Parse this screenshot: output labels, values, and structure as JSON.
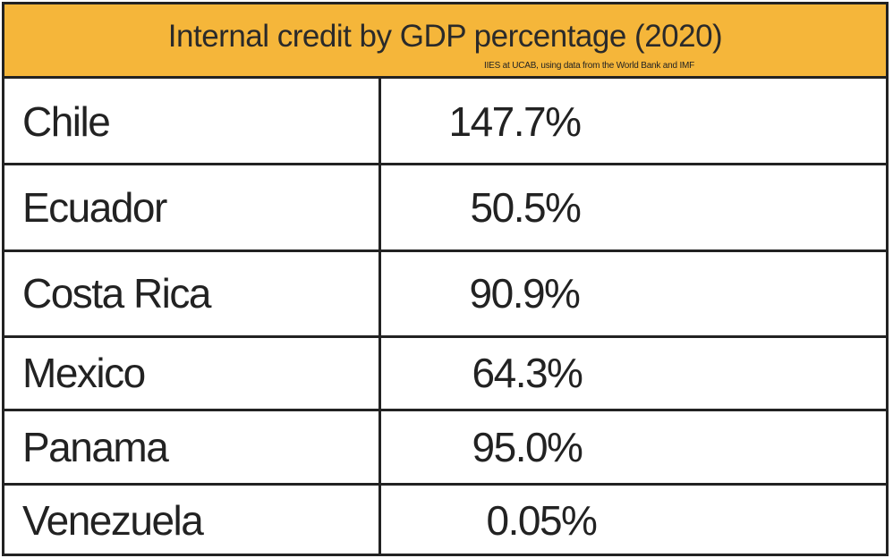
{
  "chart_data": {
    "type": "table",
    "title": "Internal credit by GDP percentage (2020)",
    "subtitle": "IIES at UCAB, using data from the World Bank and IMF",
    "rows": [
      {
        "country": "Chile",
        "value": 147.7,
        "label": "147.7%"
      },
      {
        "country": "Ecuador",
        "value": 50.5,
        "label": "50.5%"
      },
      {
        "country": "Costa Rica",
        "value": 90.9,
        "label": "90.9%"
      },
      {
        "country": "Mexico",
        "value": 64.3,
        "label": "64.3%"
      },
      {
        "country": "Panama",
        "value": 95.0,
        "label": "95.0%"
      },
      {
        "country": "Venezuela",
        "value": 0.05,
        "label": "0.05%"
      }
    ]
  },
  "colors": {
    "header_background": "#f5b63a",
    "border": "#222222",
    "text": "#222222"
  }
}
